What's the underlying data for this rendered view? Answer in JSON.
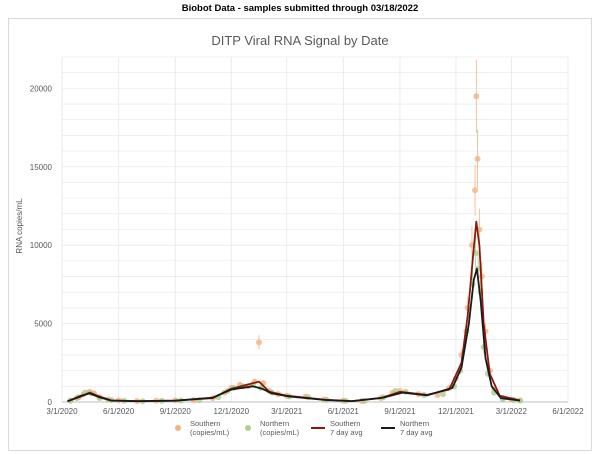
{
  "header": {
    "text": "Biobot Data - samples submitted through 03/18/2022"
  },
  "chart_data": {
    "type": "scatter",
    "title": "DITP Viral RNA Signal by Date",
    "xlabel": "",
    "ylabel": "RNA copies/mL",
    "xlim": [
      "2020-03-01",
      "2022-06-01"
    ],
    "ylim": [
      0,
      22000
    ],
    "x_ticks": [
      "3/1/2020",
      "6/1/2020",
      "9/1/2020",
      "12/1/2020",
      "3/1/2021",
      "6/1/2021",
      "9/1/2021",
      "12/1/2021",
      "3/1/2022",
      "6/1/2022"
    ],
    "x_tick_dates": [
      "2020-03-01",
      "2020-06-01",
      "2020-09-01",
      "2020-12-01",
      "2021-03-01",
      "2021-06-01",
      "2021-09-01",
      "2021-12-01",
      "2022-03-01",
      "2022-06-01"
    ],
    "y_ticks": [
      0,
      5000,
      10000,
      15000,
      20000
    ],
    "grid": true,
    "legend_position": "bottom",
    "colors": {
      "southern": "#f4b183",
      "northern": "#a9d18e",
      "southern_avg": "#8b1a0e",
      "northern_avg": "#1a1a1a",
      "grid": "#e6e6e6",
      "axis": "#bfbfbf"
    },
    "legend": [
      {
        "label_line1": "Southern",
        "label_line2": "(copies/mL)",
        "kind": "marker",
        "color": "#f4b183"
      },
      {
        "label_line1": "Northern",
        "label_line2": "(copies/mL)",
        "kind": "marker",
        "color": "#a9d18e"
      },
      {
        "label_line1": "Southern",
        "label_line2": "7 day avg",
        "kind": "line",
        "color": "#8b1a0e"
      },
      {
        "label_line1": "Northern",
        "label_line2": "7 day avg",
        "kind": "line",
        "color": "#1a1a1a"
      }
    ],
    "series": [
      {
        "name": "Southern (copies/mL)",
        "kind": "scatter",
        "points": [
          [
            "2020-03-15",
            100
          ],
          [
            "2020-03-25",
            250
          ],
          [
            "2020-04-05",
            500
          ],
          [
            "2020-04-15",
            650
          ],
          [
            "2020-04-22",
            550
          ],
          [
            "2020-05-01",
            300
          ],
          [
            "2020-05-15",
            150
          ],
          [
            "2020-06-01",
            100
          ],
          [
            "2020-07-01",
            60
          ],
          [
            "2020-08-01",
            80
          ],
          [
            "2020-09-01",
            100
          ],
          [
            "2020-10-01",
            120
          ],
          [
            "2020-11-01",
            250
          ],
          [
            "2020-11-20",
            600
          ],
          [
            "2020-12-01",
            900
          ],
          [
            "2020-12-15",
            1100
          ],
          [
            "2020-12-28",
            1000
          ],
          [
            "2021-01-08",
            1300
          ],
          [
            "2021-01-15",
            3800
          ],
          [
            "2021-01-22",
            1200
          ],
          [
            "2021-02-01",
            700
          ],
          [
            "2021-02-15",
            500
          ],
          [
            "2021-03-01",
            400
          ],
          [
            "2021-04-01",
            350
          ],
          [
            "2021-05-01",
            150
          ],
          [
            "2021-06-01",
            80
          ],
          [
            "2021-07-01",
            60
          ],
          [
            "2021-08-01",
            250
          ],
          [
            "2021-08-20",
            600
          ],
          [
            "2021-09-01",
            700
          ],
          [
            "2021-10-01",
            500
          ],
          [
            "2021-11-01",
            450
          ],
          [
            "2021-11-20",
            900
          ],
          [
            "2021-12-01",
            1500
          ],
          [
            "2021-12-10",
            3000
          ],
          [
            "2021-12-20",
            6000
          ],
          [
            "2021-12-27",
            10000
          ],
          [
            "2022-01-01",
            13500
          ],
          [
            "2022-01-03",
            19500
          ],
          [
            "2022-01-05",
            15500
          ],
          [
            "2022-01-08",
            11000
          ],
          [
            "2022-01-12",
            8000
          ],
          [
            "2022-01-18",
            4500
          ],
          [
            "2022-01-25",
            2000
          ],
          [
            "2022-02-01",
            800
          ],
          [
            "2022-02-15",
            250
          ],
          [
            "2022-03-01",
            150
          ],
          [
            "2022-03-15",
            100
          ]
        ]
      },
      {
        "name": "Northern (copies/mL)",
        "kind": "scatter",
        "points": [
          [
            "2020-03-15",
            80
          ],
          [
            "2020-03-28",
            300
          ],
          [
            "2020-04-08",
            600
          ],
          [
            "2020-04-18",
            550
          ],
          [
            "2020-05-01",
            250
          ],
          [
            "2020-05-20",
            120
          ],
          [
            "2020-06-10",
            80
          ],
          [
            "2020-07-10",
            50
          ],
          [
            "2020-08-10",
            70
          ],
          [
            "2020-09-10",
            90
          ],
          [
            "2020-10-10",
            110
          ],
          [
            "2020-11-10",
            300
          ],
          [
            "2020-11-25",
            700
          ],
          [
            "2020-12-05",
            900
          ],
          [
            "2020-12-20",
            1000
          ],
          [
            "2021-01-05",
            1100
          ],
          [
            "2021-01-18",
            900
          ],
          [
            "2021-02-05",
            600
          ],
          [
            "2021-03-05",
            350
          ],
          [
            "2021-04-05",
            300
          ],
          [
            "2021-05-05",
            130
          ],
          [
            "2021-06-05",
            70
          ],
          [
            "2021-07-05",
            60
          ],
          [
            "2021-08-05",
            300
          ],
          [
            "2021-08-25",
            700
          ],
          [
            "2021-09-10",
            650
          ],
          [
            "2021-10-10",
            450
          ],
          [
            "2021-11-10",
            500
          ],
          [
            "2021-11-28",
            1000
          ],
          [
            "2021-12-08",
            2000
          ],
          [
            "2021-12-18",
            4500
          ],
          [
            "2021-12-28",
            7500
          ],
          [
            "2022-01-02",
            9500
          ],
          [
            "2022-01-06",
            8500
          ],
          [
            "2022-01-10",
            7000
          ],
          [
            "2022-01-15",
            3500
          ],
          [
            "2022-01-22",
            1800
          ],
          [
            "2022-02-01",
            600
          ],
          [
            "2022-02-15",
            200
          ],
          [
            "2022-03-05",
            120
          ],
          [
            "2022-03-15",
            90
          ]
        ]
      },
      {
        "name": "Southern 7 day avg",
        "kind": "line",
        "points": [
          [
            "2020-03-10",
            50
          ],
          [
            "2020-04-01",
            350
          ],
          [
            "2020-04-15",
            600
          ],
          [
            "2020-05-01",
            350
          ],
          [
            "2020-05-20",
            100
          ],
          [
            "2020-07-01",
            60
          ],
          [
            "2020-09-01",
            90
          ],
          [
            "2020-11-01",
            250
          ],
          [
            "2020-12-01",
            850
          ],
          [
            "2021-01-05",
            1200
          ],
          [
            "2021-01-15",
            1300
          ],
          [
            "2021-02-01",
            650
          ],
          [
            "2021-03-01",
            400
          ],
          [
            "2021-05-01",
            150
          ],
          [
            "2021-06-15",
            60
          ],
          [
            "2021-08-01",
            250
          ],
          [
            "2021-09-01",
            650
          ],
          [
            "2021-10-15",
            450
          ],
          [
            "2021-11-20",
            800
          ],
          [
            "2021-12-10",
            2500
          ],
          [
            "2021-12-20",
            5500
          ],
          [
            "2021-12-28",
            9000
          ],
          [
            "2022-01-03",
            11500
          ],
          [
            "2022-01-08",
            10000
          ],
          [
            "2022-01-15",
            5000
          ],
          [
            "2022-01-25",
            1800
          ],
          [
            "2022-02-10",
            400
          ],
          [
            "2022-03-15",
            100
          ]
        ]
      },
      {
        "name": "Northern 7 day avg",
        "kind": "line",
        "points": [
          [
            "2020-03-10",
            40
          ],
          [
            "2020-04-01",
            400
          ],
          [
            "2020-04-15",
            550
          ],
          [
            "2020-05-01",
            300
          ],
          [
            "2020-05-20",
            90
          ],
          [
            "2020-07-01",
            50
          ],
          [
            "2020-09-01",
            80
          ],
          [
            "2020-11-01",
            280
          ],
          [
            "2020-12-01",
            800
          ],
          [
            "2021-01-05",
            1000
          ],
          [
            "2021-01-20",
            850
          ],
          [
            "2021-02-05",
            550
          ],
          [
            "2021-03-05",
            350
          ],
          [
            "2021-05-05",
            120
          ],
          [
            "2021-06-15",
            60
          ],
          [
            "2021-08-05",
            280
          ],
          [
            "2021-09-05",
            600
          ],
          [
            "2021-10-15",
            420
          ],
          [
            "2021-11-25",
            900
          ],
          [
            "2021-12-10",
            2200
          ],
          [
            "2021-12-22",
            5000
          ],
          [
            "2021-12-30",
            7800
          ],
          [
            "2022-01-04",
            8500
          ],
          [
            "2022-01-10",
            6500
          ],
          [
            "2022-01-18",
            2800
          ],
          [
            "2022-01-28",
            1000
          ],
          [
            "2022-02-12",
            250
          ],
          [
            "2022-03-15",
            90
          ]
        ]
      }
    ]
  }
}
